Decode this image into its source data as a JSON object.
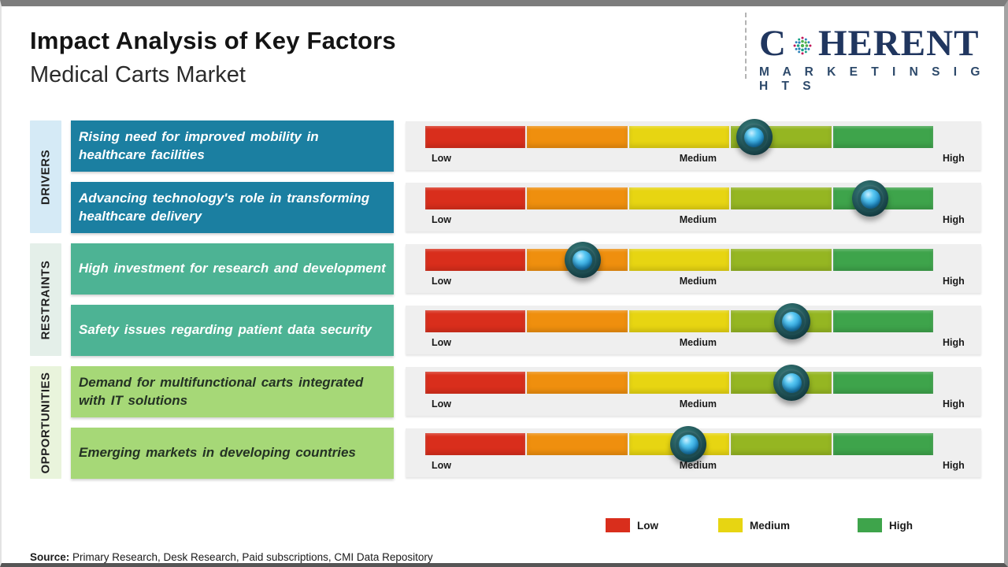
{
  "header": {
    "title": "Impact Analysis of Key Factors",
    "subtitle": "Medical Carts Market"
  },
  "logo": {
    "name": "Coherent Market Insights",
    "brand_prefix": "C",
    "brand_suffix": "HERENT",
    "tagline": "M A R K E T   I N S I G H T S",
    "brand_color": "#20365f"
  },
  "scale": {
    "low": "Low",
    "medium": "Medium",
    "high": "High"
  },
  "bar": {
    "track_color": "#efefef",
    "segments": [
      "#d92e1c",
      "#ef8f0e",
      "#e7d512",
      "#95b622",
      "#3ea44b"
    ]
  },
  "groups": [
    {
      "label": "DRIVERS",
      "side_color": "#d5eaf6",
      "box_color": "#1b7fa1",
      "text_color": "#ffffff",
      "factors": [
        {
          "text": "Rising need for improved mobility in healthcare facilities",
          "marker_percent": 64.8
        },
        {
          "text": "Advancing technology's role in transforming healthcare delivery",
          "marker_percent": 87.6
        }
      ]
    },
    {
      "label": "RESTRAINTS",
      "side_color": "#e4efe9",
      "box_color": "#4db394",
      "text_color": "#ffffff",
      "factors": [
        {
          "text": "High investment for research and development",
          "marker_percent": 31.0
        },
        {
          "text": "Safety issues regarding patient data security",
          "marker_percent": 72.2
        }
      ]
    },
    {
      "label": "OPPORTUNITIES",
      "side_color": "#e9f4dc",
      "box_color": "#a6d877",
      "text_color": "#243224",
      "factors": [
        {
          "text": "Demand for multifunctional carts integrated with IT solutions",
          "marker_percent": 72.1
        },
        {
          "text": "Emerging markets in developing countries",
          "marker_percent": 51.8
        }
      ]
    }
  ],
  "legend": [
    {
      "label": "Low",
      "color": "#d92e1c"
    },
    {
      "label": "Medium",
      "color": "#e7d512"
    },
    {
      "label": "High",
      "color": "#3ea44b"
    }
  ],
  "source": {
    "label": "Source:",
    "text": " Primary Research, Desk Research, Paid subscriptions, CMI Data Repository"
  }
}
